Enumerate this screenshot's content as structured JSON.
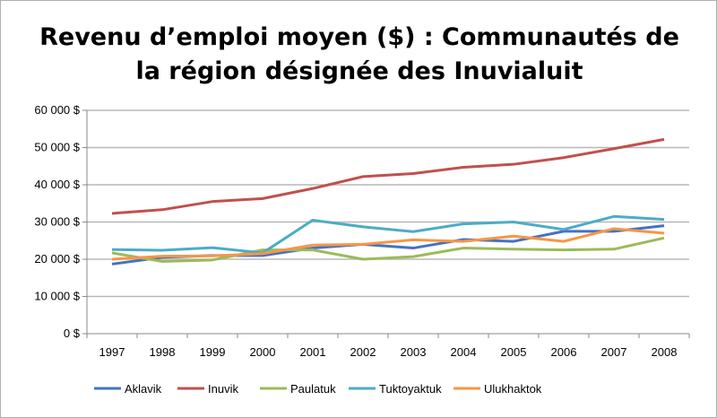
{
  "chart_data": {
    "type": "line",
    "title_line1": "Revenu d’emploi moyen ($) : Communautés de",
    "title_line2": "la région désignée des Inuvialuit",
    "x": [
      "1997",
      "1998",
      "1999",
      "2000",
      "2001",
      "2002",
      "2003",
      "2004",
      "2005",
      "2006",
      "2007",
      "2008"
    ],
    "ylim": [
      0,
      60000
    ],
    "yticks": [
      0,
      10000,
      20000,
      30000,
      40000,
      50000,
      60000
    ],
    "ytick_labels": [
      "0 $",
      "10 000 $",
      "20 000 $",
      "30 000 $",
      "40 000 $",
      "50 000 $",
      "60 000 $"
    ],
    "grid": true,
    "legend_position": "bottom",
    "series": [
      {
        "name": "Aklavik",
        "color": "#4472c4",
        "values": [
          18700,
          20500,
          21000,
          21000,
          23000,
          24000,
          23000,
          25300,
          24800,
          27500,
          27500,
          29000
        ]
      },
      {
        "name": "Inuvik",
        "color": "#c0504d",
        "values": [
          32300,
          33300,
          35500,
          36300,
          39000,
          42200,
          43000,
          44700,
          45500,
          47300,
          49700,
          52200
        ]
      },
      {
        "name": "Paulatuk",
        "color": "#9bbb59",
        "values": [
          21700,
          19400,
          19800,
          22500,
          22500,
          20000,
          20700,
          23000,
          22700,
          22500,
          22700,
          25700
        ]
      },
      {
        "name": "Tuktoyaktuk",
        "color": "#4bacc6",
        "values": [
          22600,
          22400,
          23100,
          21700,
          30500,
          28700,
          27400,
          29500,
          30000,
          28000,
          31500,
          30700
        ]
      },
      {
        "name": "Ulukhaktok",
        "color": "#f79646",
        "values": [
          20000,
          20800,
          20900,
          21500,
          23800,
          24000,
          25200,
          24800,
          26200,
          24800,
          28200,
          27000
        ]
      }
    ]
  }
}
